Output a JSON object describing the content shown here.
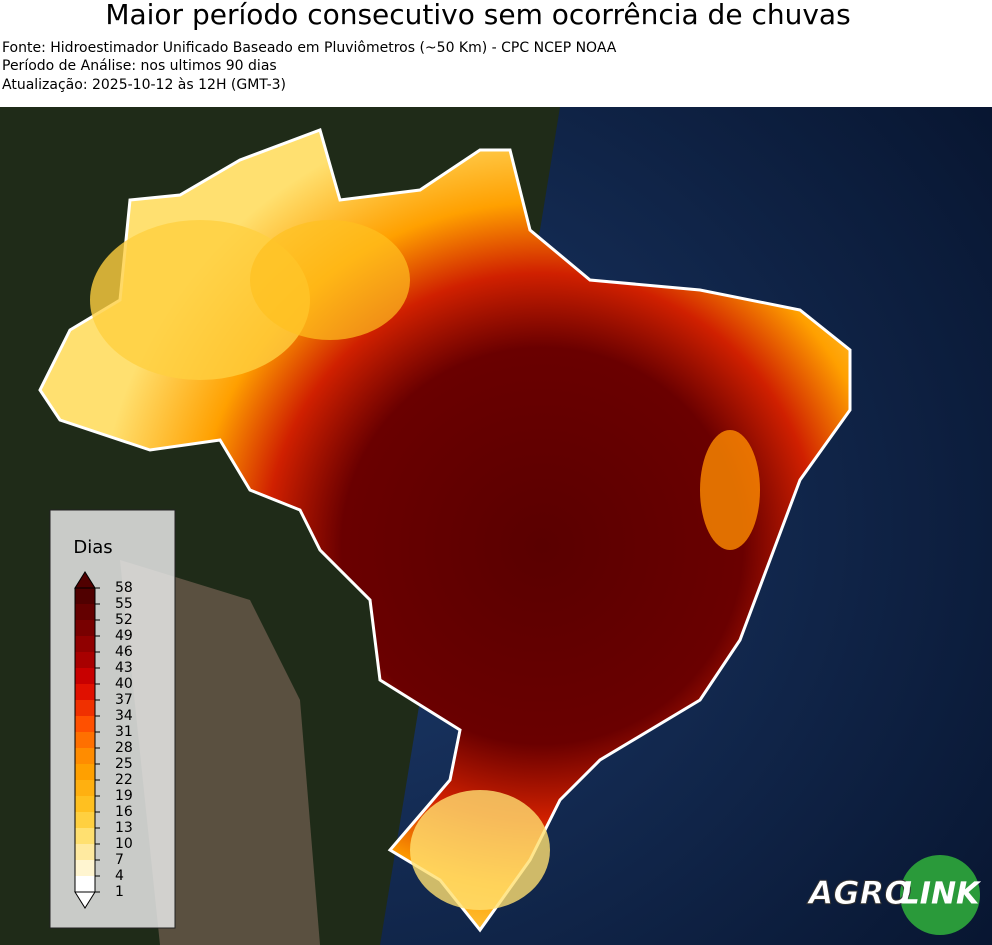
{
  "title": "Maior período consecutivo sem ocorrência de chuvas",
  "subtitle": [
    "Fonte: Hidroestimador Unificado Baseado em Pluviômetros (~50 Km) - CPC NCEP NOAA",
    "Período de Análise: nos ultimos 90 dias",
    "Atualização: 2025-10-12 às 12H (GMT-3)"
  ],
  "colorbar": {
    "label": "Dias",
    "ticks": [
      1,
      4,
      7,
      10,
      13,
      16,
      19,
      22,
      25,
      28,
      31,
      34,
      37,
      40,
      43,
      46,
      49,
      52,
      55,
      58
    ],
    "colors": [
      "#ffffff",
      "#fff5d0",
      "#ffeaa0",
      "#ffe070",
      "#ffd040",
      "#ffc020",
      "#ffb010",
      "#ffa000",
      "#ff8c00",
      "#ff7000",
      "#ff5000",
      "#f03000",
      "#e01000",
      "#c80000",
      "#a80000",
      "#900000",
      "#780000",
      "#640000",
      "#500000"
    ]
  },
  "logo": {
    "left": "AGRO",
    "right": "LINK"
  }
}
